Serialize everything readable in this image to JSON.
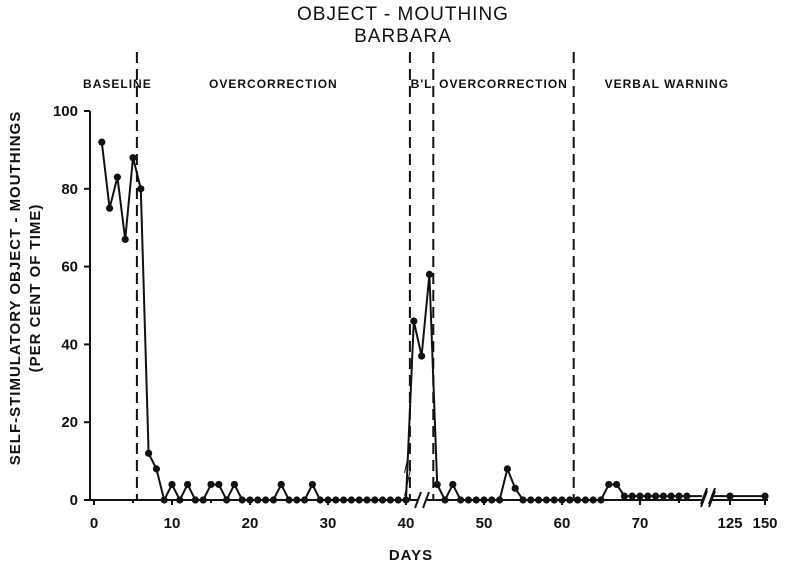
{
  "chart_data": {
    "type": "line",
    "title": "OBJECT - MOUTHING",
    "subtitle": "BARBARA",
    "xlabel": "DAYS",
    "ylabel_line1": "SELF-STIMULATORY OBJECT - MOUTHINGS",
    "ylabel_line2": "(PER CENT OF TIME)",
    "ylim": [
      0,
      100
    ],
    "yticks": [
      0,
      20,
      40,
      60,
      80,
      100
    ],
    "xticks": [
      {
        "value": 0,
        "label": "0"
      },
      {
        "value": 10,
        "label": "10"
      },
      {
        "value": 20,
        "label": "20"
      },
      {
        "value": 30,
        "label": "30"
      },
      {
        "value": 40,
        "label": "40"
      },
      {
        "value": 50,
        "label": "50"
      },
      {
        "value": 60,
        "label": "60"
      },
      {
        "value": 70,
        "label": "70"
      },
      {
        "value": 125,
        "label": "125"
      },
      {
        "value": 150,
        "label": "150"
      }
    ],
    "axis_breaks": [
      "x between 40 and 41",
      "x between 76 and 125"
    ],
    "grid": false,
    "line_color": "#111111",
    "phases": [
      {
        "label": "BASELINE",
        "start": 0.5,
        "end": 5.5
      },
      {
        "label": "OVERCORRECTION",
        "start": 5.5,
        "end": 40.5
      },
      {
        "label": "B'L",
        "start": 40.5,
        "end": 43.5
      },
      {
        "label": "OVERCORRECTION",
        "start": 43.5,
        "end": 61.5
      },
      {
        "label": "VERBAL WARNING",
        "start": 61.5,
        "end": 150
      }
    ],
    "phase_lines": [
      5.5,
      40.5,
      43.5,
      61.5
    ],
    "series": [
      {
        "x": [
          1,
          2,
          3,
          4,
          5,
          6,
          7,
          8,
          9,
          10,
          11,
          12,
          13,
          14,
          15,
          16,
          17,
          18,
          19,
          20,
          21,
          22,
          23,
          24,
          25,
          26,
          27,
          28,
          29,
          30,
          31,
          32,
          33,
          34,
          35,
          36,
          37,
          38,
          39,
          40,
          41,
          42,
          43,
          44,
          45,
          46,
          47,
          48,
          49,
          50,
          51,
          52,
          53,
          54,
          55,
          56,
          57,
          58,
          59,
          60,
          61,
          62,
          63,
          64,
          65,
          66,
          67,
          68,
          69,
          70,
          71,
          72,
          73,
          74,
          75,
          76,
          125,
          150
        ],
        "y": [
          92,
          75,
          83,
          67,
          88,
          80,
          12,
          8,
          0,
          4,
          0,
          4,
          0,
          0,
          4,
          4,
          0,
          4,
          0,
          0,
          0,
          0,
          0,
          4,
          0,
          0,
          0,
          4,
          0,
          0,
          0,
          0,
          0,
          0,
          0,
          0,
          0,
          0,
          0,
          0,
          46,
          37,
          58,
          4,
          0,
          4,
          0,
          0,
          0,
          0,
          0,
          0,
          8,
          3,
          0,
          0,
          0,
          0,
          0,
          0,
          0,
          0,
          0,
          0,
          0,
          4,
          4,
          1,
          1,
          1,
          1,
          1,
          1,
          1,
          1,
          1,
          1,
          1
        ]
      }
    ]
  }
}
